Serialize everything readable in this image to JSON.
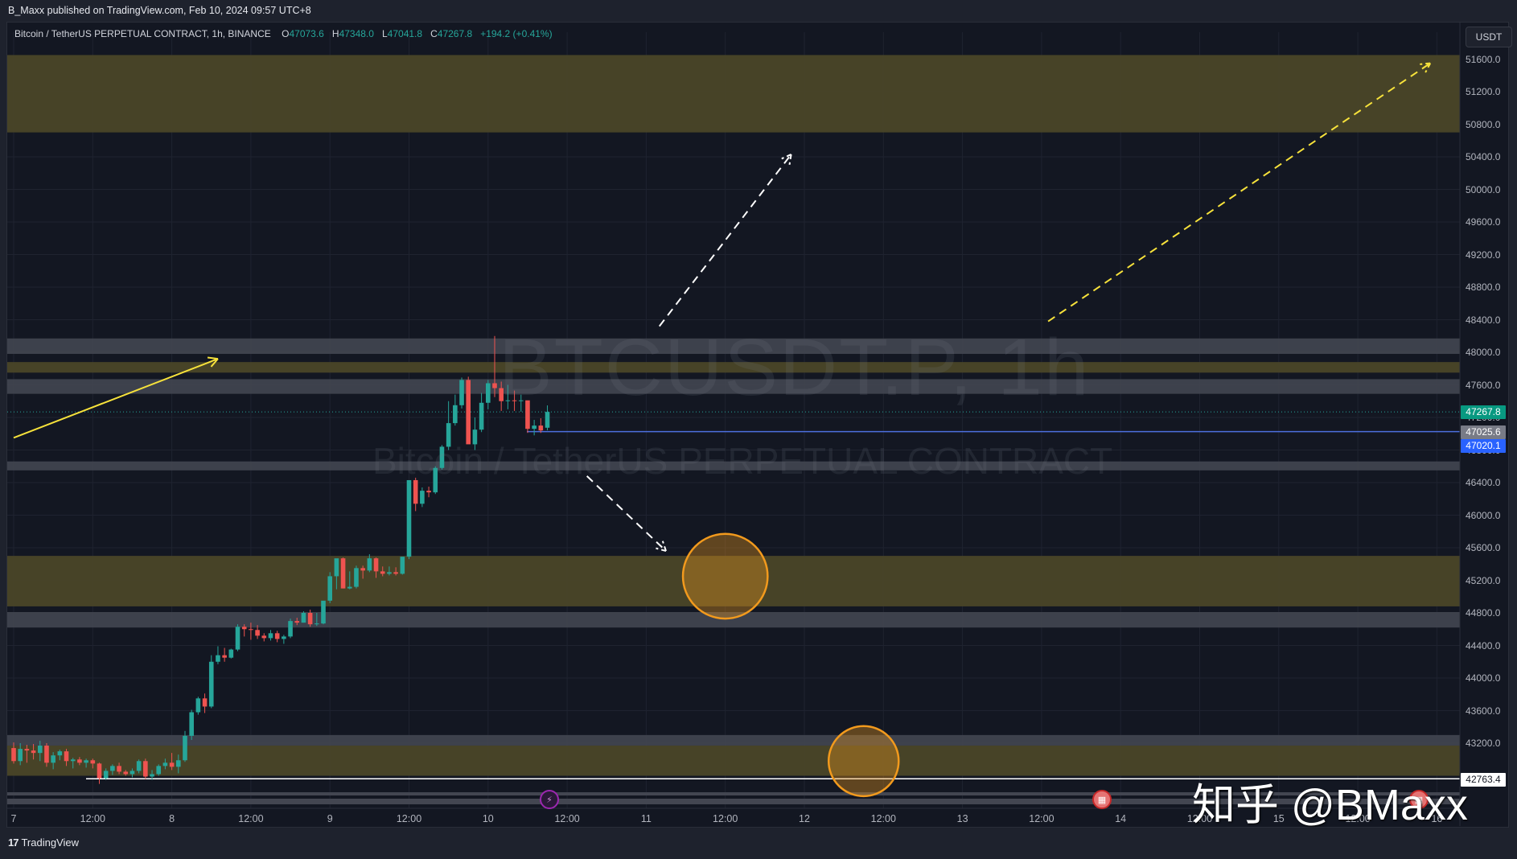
{
  "header": {
    "publisher_line": "B_Maxx published on TradingView.com, Feb 10, 2024 09:57 UTC+8"
  },
  "legend": {
    "title": "Bitcoin / TetherUS PERPETUAL CONTRACT, 1h, BINANCE",
    "o_key": "O",
    "o_val": "47073.6",
    "h_key": "H",
    "h_val": "47348.0",
    "l_key": "L",
    "l_val": "47041.8",
    "c_key": "C",
    "c_val": "47267.8",
    "change": "+194.2 (+0.41%)"
  },
  "currency_button": "USDT",
  "watermark": {
    "symbol": "BTCUSDT.P, 1h",
    "name": "Bitcoin / TetherUS PERPETUAL CONTRACT",
    "overlay": "知乎 @BMaxx"
  },
  "footer": {
    "logo": "17",
    "brand": "TradingView"
  },
  "price_tags": {
    "last": {
      "value": "47267.8",
      "color": "#089981"
    },
    "line1": {
      "value": "47025.6",
      "color": "#787b86"
    },
    "line2": {
      "value": "47020.1",
      "color": "#2962ff"
    },
    "low": {
      "value": "42763.4",
      "color": "#ffffff"
    }
  },
  "colors": {
    "bg": "#131722",
    "up": "#26a69a",
    "down": "#ef5350",
    "yellow_zone": "#4a4628",
    "gray_zone": "#434651",
    "arrow_yellow": "#f7e23b",
    "circle": "#f29a1d",
    "hline_blue": "#4c6fde"
  },
  "chart_data": {
    "type": "candlestick",
    "title": "Bitcoin / TetherUS PERPETUAL CONTRACT, 1h, BINANCE",
    "xlabel": "",
    "ylabel": "USDT",
    "x_ticks": [
      "7",
      "12:00",
      "8",
      "12:00",
      "9",
      "12:00",
      "10",
      "12:00",
      "11",
      "12:00",
      "12",
      "12:00",
      "13",
      "12:00",
      "14",
      "12:00",
      "15",
      "12:00",
      "16"
    ],
    "y_ticks": [
      "51600.0",
      "51200.0",
      "50800.0",
      "50400.0",
      "50000.0",
      "49600.0",
      "49200.0",
      "48800.0",
      "48400.0",
      "48000.0",
      "47600.0",
      "47200.0",
      "46800.0",
      "46400.0",
      "46000.0",
      "45600.0",
      "45200.0",
      "44800.0",
      "44400.0",
      "44000.0",
      "43600.0",
      "43200.0"
    ],
    "ylim": [
      42200,
      52000
    ],
    "grid": true,
    "ohlc_last": {
      "open": 47073.6,
      "high": 47348.0,
      "low": 47041.8,
      "close": 47267.8
    },
    "zones": [
      {
        "type": "supply",
        "color": "yellow",
        "from": 50700,
        "to": 51650
      },
      {
        "type": "level",
        "color": "gray",
        "from": 47980,
        "to": 48170
      },
      {
        "type": "supply",
        "color": "yellow",
        "from": 47750,
        "to": 47880
      },
      {
        "type": "level",
        "color": "gray",
        "from": 47490,
        "to": 47670
      },
      {
        "type": "level",
        "color": "gray",
        "from": 46550,
        "to": 46660
      },
      {
        "type": "demand",
        "color": "yellow",
        "from": 44880,
        "to": 45500
      },
      {
        "type": "level",
        "color": "gray",
        "from": 44620,
        "to": 44810
      },
      {
        "type": "level",
        "color": "gray",
        "from": 43170,
        "to": 43300
      },
      {
        "type": "demand",
        "color": "yellow",
        "from": 42800,
        "to": 43170
      }
    ],
    "horizontal_lines": [
      {
        "price": 47025.6,
        "color": "blue"
      },
      {
        "price": 42763.4,
        "color": "white"
      }
    ],
    "annotations": [
      {
        "type": "arrow",
        "style": "solid",
        "color": "yellow",
        "from": [
          "Feb 7 00:00",
          46950
        ],
        "to": [
          "Feb 8 07:00",
          47920
        ]
      },
      {
        "type": "arrow",
        "style": "dashed",
        "color": "white",
        "from": [
          "Feb 11 02:00",
          48320
        ],
        "to": [
          "Feb 11 22:00",
          50430
        ]
      },
      {
        "type": "arrow",
        "style": "dashed",
        "color": "white",
        "from": [
          "Feb 10 15:00",
          46480
        ],
        "to": [
          "Feb 11 03:00",
          45560
        ]
      },
      {
        "type": "arrow",
        "style": "dashed",
        "color": "yellow",
        "from": [
          "Feb 13 13:00",
          48380
        ],
        "to": [
          "Feb 15 23:00",
          51550
        ]
      },
      {
        "type": "circle",
        "color": "orange",
        "center": [
          "Feb 11 12:00",
          45250
        ],
        "radius_price": 520
      },
      {
        "type": "circle",
        "color": "orange",
        "center": [
          "Feb 12 09:00",
          42980
        ],
        "radius_price": 430
      }
    ],
    "candles": [
      [
        43140,
        43210,
        42950,
        42980
      ],
      [
        42980,
        43200,
        42930,
        43130
      ],
      [
        43130,
        43180,
        42960,
        43110
      ],
      [
        43110,
        43190,
        43000,
        43080
      ],
      [
        43080,
        43230,
        42980,
        43170
      ],
      [
        43170,
        43200,
        42910,
        42960
      ],
      [
        42960,
        43090,
        42880,
        43050
      ],
      [
        43050,
        43120,
        42990,
        43100
      ],
      [
        43100,
        43130,
        42920,
        42980
      ],
      [
        42980,
        43020,
        42890,
        43000
      ],
      [
        43000,
        43030,
        42930,
        42960
      ],
      [
        42960,
        43010,
        42900,
        42990
      ],
      [
        42990,
        43010,
        42890,
        42950
      ],
      [
        42950,
        42960,
        42700,
        42770
      ],
      [
        42770,
        42890,
        42750,
        42860
      ],
      [
        42860,
        42940,
        42810,
        42920
      ],
      [
        42920,
        42960,
        42820,
        42850
      ],
      [
        42850,
        42870,
        42800,
        42820
      ],
      [
        42820,
        42890,
        42780,
        42860
      ],
      [
        42860,
        43000,
        42830,
        42980
      ],
      [
        42980,
        43010,
        42760,
        42790
      ],
      [
        42790,
        42870,
        42750,
        42820
      ],
      [
        42820,
        42940,
        42800,
        42920
      ],
      [
        42920,
        43010,
        42880,
        42960
      ],
      [
        42960,
        43080,
        42870,
        42910
      ],
      [
        42910,
        43060,
        42830,
        42990
      ],
      [
        42990,
        43350,
        42970,
        43290
      ],
      [
        43290,
        43610,
        43240,
        43580
      ],
      [
        43580,
        43770,
        43550,
        43750
      ],
      [
        43750,
        43810,
        43570,
        43650
      ],
      [
        43650,
        44280,
        43630,
        44200
      ],
      [
        44200,
        44390,
        44170,
        44280
      ],
      [
        44280,
        44370,
        44200,
        44250
      ],
      [
        44250,
        44360,
        44240,
        44350
      ],
      [
        44350,
        44660,
        44330,
        44630
      ],
      [
        44630,
        44660,
        44510,
        44600
      ],
      [
        44600,
        44680,
        44470,
        44590
      ],
      [
        44590,
        44650,
        44480,
        44520
      ],
      [
        44520,
        44550,
        44450,
        44490
      ],
      [
        44490,
        44590,
        44460,
        44550
      ],
      [
        44550,
        44580,
        44440,
        44480
      ],
      [
        44480,
        44530,
        44420,
        44510
      ],
      [
        44510,
        44730,
        44490,
        44700
      ],
      [
        44700,
        44740,
        44650,
        44680
      ],
      [
        44680,
        44820,
        44680,
        44800
      ],
      [
        44800,
        44840,
        44630,
        44660
      ],
      [
        44660,
        44800,
        44640,
        44670
      ],
      [
        44670,
        44920,
        44660,
        44950
      ],
      [
        44950,
        45300,
        44920,
        45250
      ],
      [
        45250,
        45410,
        45090,
        45470
      ],
      [
        45470,
        45480,
        45100,
        45100
      ],
      [
        45100,
        45310,
        45090,
        45120
      ],
      [
        45120,
        45380,
        45100,
        45350
      ],
      [
        45350,
        45380,
        45220,
        45320
      ],
      [
        45320,
        45520,
        45300,
        45470
      ],
      [
        45470,
        45480,
        45230,
        45310
      ],
      [
        45310,
        45370,
        45250,
        45280
      ],
      [
        45280,
        45370,
        45260,
        45300
      ],
      [
        45300,
        45360,
        45260,
        45280
      ],
      [
        45280,
        45480,
        45270,
        45490
      ],
      [
        45490,
        46360,
        45460,
        46430
      ],
      [
        46430,
        46460,
        46050,
        46140
      ],
      [
        46140,
        46340,
        46100,
        46300
      ],
      [
        46300,
        46350,
        46220,
        46280
      ],
      [
        46280,
        46600,
        46260,
        46580
      ],
      [
        46580,
        46860,
        46560,
        46840
      ],
      [
        46840,
        47400,
        46800,
        47130
      ],
      [
        47130,
        47480,
        47100,
        47350
      ],
      [
        47350,
        47690,
        47310,
        47660
      ],
      [
        47660,
        47700,
        47050,
        46870
      ],
      [
        46870,
        47200,
        46800,
        47050
      ],
      [
        47050,
        47500,
        47020,
        47380
      ],
      [
        47380,
        47660,
        47300,
        47620
      ],
      [
        47620,
        48200,
        47450,
        47560
      ],
      [
        47560,
        47640,
        47280,
        47400
      ],
      [
        47400,
        47600,
        47300,
        47410
      ],
      [
        47410,
        47530,
        47280,
        47400
      ],
      [
        47400,
        47480,
        47270,
        47410
      ],
      [
        47410,
        47400,
        47010,
        47060
      ],
      [
        47060,
        47170,
        46980,
        47100
      ],
      [
        47100,
        47190,
        47010,
        47040
      ],
      [
        47073.6,
        47348,
        47041.8,
        47267.8
      ]
    ]
  }
}
